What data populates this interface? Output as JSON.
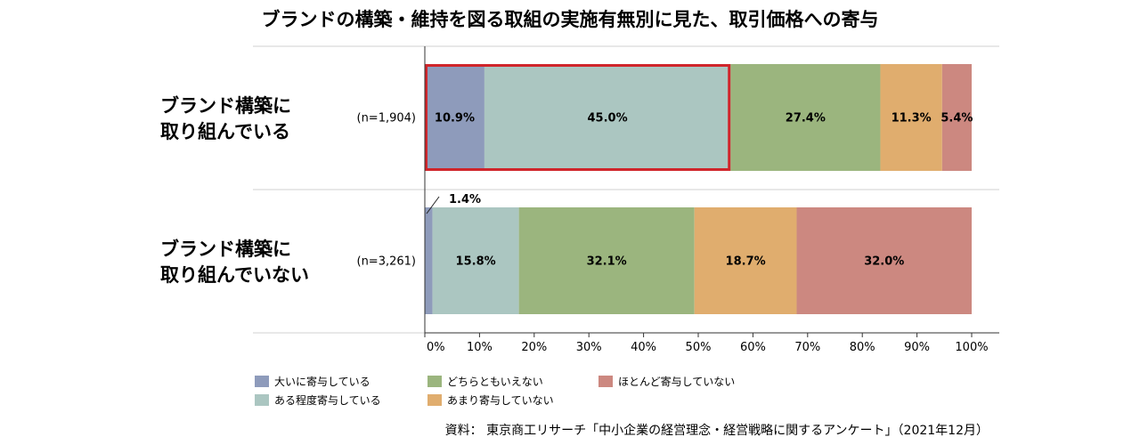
{
  "chart_data": {
    "type": "bar",
    "orientation": "horizontal",
    "stacked": true,
    "title": "ブランドの構築・維持を図る取組の実施有無別に見た、取引価格への寄与",
    "categories": [
      {
        "label_lines": [
          "ブランド構築に",
          "取り組んでいる"
        ],
        "n": "(n=1,904)"
      },
      {
        "label_lines": [
          "ブランド構築に",
          "取り組んでいない"
        ],
        "n": "(n=3,261)"
      }
    ],
    "series": [
      {
        "name": "大いに寄与している",
        "color": "#8e9bbb",
        "values": [
          10.9,
          1.4
        ]
      },
      {
        "name": "ある程度寄与している",
        "color": "#abc6c1",
        "values": [
          45.0,
          15.8
        ]
      },
      {
        "name": "どちらともいえない",
        "color": "#9bb57e",
        "values": [
          27.4,
          32.1
        ]
      },
      {
        "name": "あまり寄与していない",
        "color": "#e0ad6e",
        "values": [
          11.3,
          18.7
        ]
      },
      {
        "name": "ほとんど寄与していない",
        "color": "#cc8880",
        "values": [
          5.4,
          32.0
        ]
      }
    ],
    "data_labels": [
      [
        "10.9%",
        "45.0%",
        "27.4%",
        "11.3%",
        "5.4%"
      ],
      [
        "1.4%",
        "15.8%",
        "32.1%",
        "18.7%",
        "32.0%"
      ]
    ],
    "xlim": [
      0,
      100
    ],
    "x_ticks": [
      "0%",
      "10%",
      "20%",
      "30%",
      "40%",
      "50%",
      "60%",
      "70%",
      "80%",
      "90%",
      "100%"
    ],
    "legend_position": "bottom-left",
    "highlight": {
      "row": 0,
      "from": 0,
      "to": 55.9,
      "color": "#d0252b"
    },
    "source": "資料： 東京商工リサーチ「中小企業の経営理念・経営戦略に関するアンケート」（2021年12月）"
  }
}
